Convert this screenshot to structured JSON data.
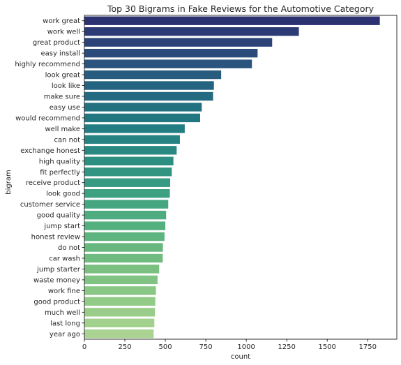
{
  "chart_data": {
    "type": "bar",
    "orientation": "horizontal",
    "title": "Top 30 Bigrams in Fake Reviews for the Automotive Category",
    "xlabel": "count",
    "ylabel": "bigram",
    "xlim": [
      0,
      1930
    ],
    "xticks": [
      0,
      250,
      500,
      750,
      1000,
      1250,
      1500,
      1750
    ],
    "grid": false,
    "legend": "none",
    "palette": "crest",
    "categories": [
      "work great",
      "work well",
      "great product",
      "easy install",
      "highly recommend",
      "look great",
      "look like",
      "make sure",
      "easy use",
      "would recommend",
      "well make",
      "can not",
      "exchange honest",
      "high quality",
      "fit perfectly",
      "receive product",
      "look good",
      "customer service",
      "good quality",
      "jump start",
      "honest review",
      "do not",
      "car wash",
      "jump starter",
      "waste money",
      "work fine",
      "good product",
      "much well",
      "last long",
      "year ago"
    ],
    "values": [
      1825,
      1325,
      1160,
      1070,
      1035,
      845,
      800,
      795,
      725,
      715,
      620,
      590,
      570,
      550,
      540,
      530,
      528,
      518,
      505,
      500,
      495,
      485,
      484,
      462,
      452,
      442,
      438,
      436,
      432,
      428
    ],
    "colors": [
      "#2c3172",
      "#2c3b75",
      "#2c4378",
      "#2b4c7b",
      "#2a547d",
      "#285c7f",
      "#266380",
      "#246a81",
      "#237081",
      "#237781",
      "#247d82",
      "#268382",
      "#298982",
      "#2d8f82",
      "#319582",
      "#369b82",
      "#3da181",
      "#45a681",
      "#4eac80",
      "#55b07f",
      "#5eb47f",
      "#67b87f",
      "#70bc80",
      "#79c081",
      "#81c383",
      "#89c785",
      "#92ca87",
      "#9acd8a",
      "#a2d08d",
      "#aad391"
    ]
  }
}
